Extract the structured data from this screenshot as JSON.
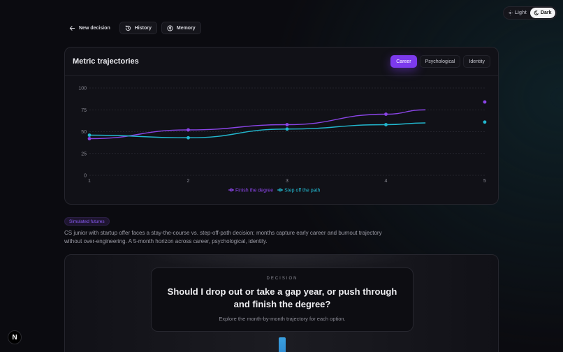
{
  "theme": {
    "options": [
      {
        "label": "Light",
        "icon": "sun-icon"
      },
      {
        "label": "Dark",
        "icon": "moon-icon"
      }
    ],
    "selected": "Dark"
  },
  "nav": {
    "new_decision": "New decision",
    "history": "History",
    "memory": "Memory"
  },
  "card": {
    "title": "Metric trajectories",
    "tabs": [
      "Career",
      "Psychological",
      "Identity"
    ],
    "active_tab": "Career"
  },
  "colors": {
    "purple": "#8b45e8",
    "cyan": "#22b8cf",
    "accent": "#7c3aed"
  },
  "chart_data": {
    "type": "line",
    "title": "Metric trajectories",
    "xlabel": "",
    "ylabel": "",
    "x": [
      1,
      2,
      3,
      4,
      5
    ],
    "ylim": [
      0,
      100
    ],
    "yticks": [
      0,
      25,
      50,
      75,
      100
    ],
    "xticks": [
      1,
      2,
      3,
      4,
      5
    ],
    "grid": true,
    "legend_position": "bottom",
    "series": [
      {
        "name": "Finish the degree",
        "color": "#8b45e8",
        "values": [
          42,
          52,
          58,
          70,
          84
        ],
        "line_end": {
          "x": 4.4,
          "y": 75
        }
      },
      {
        "name": "Step off the path",
        "color": "#22b8cf",
        "values": [
          46,
          43,
          53,
          58,
          61
        ],
        "line_end": {
          "x": 4.4,
          "y": 60
        }
      }
    ]
  },
  "badge": "Simulated futures",
  "summary": "CS junior with startup offer faces a stay-the-course vs. step-off-path decision; months capture early career and burnout trajectory without over-engineering. A 5-month horizon across career, psychological, identity.",
  "decision": {
    "label": "DECISION",
    "question": "Should I drop out or take a gap year, or push through and finish the degree?",
    "subtitle": "Explore the month-by-month trajectory for each option."
  },
  "logo": "N"
}
